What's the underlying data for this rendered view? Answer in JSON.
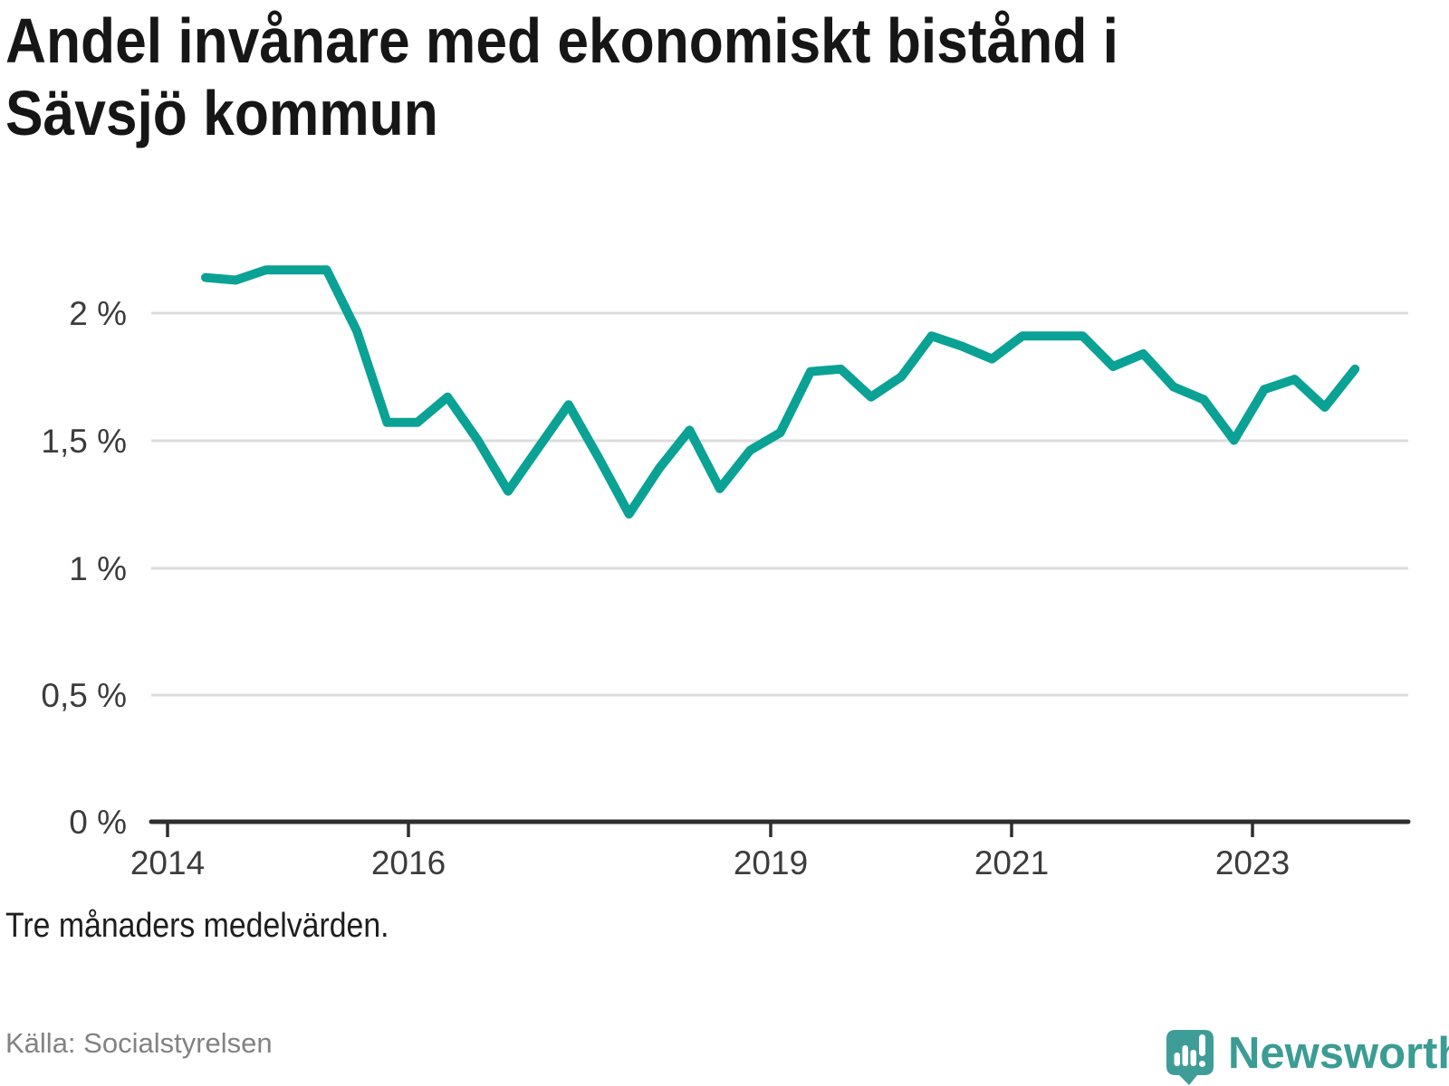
{
  "title": "Andel invånare med ekonomiskt bistånd i Sävsjö kommun",
  "footnote": "Tre månaders medelvärden.",
  "source": "Källa: Socialstyrelsen",
  "branding": {
    "logo_text": "Newsworthy",
    "brand_color": "#3b9c94"
  },
  "chart_data": {
    "type": "line",
    "title": "Andel invånare med ekonomiskt bistånd i Sävsjö kommun",
    "subtitle_note": "Tre månaders medelvärden.",
    "unit": "%",
    "line_color": "#0aa295",
    "grid": "horizontal",
    "legend": "none",
    "ylim": [
      0,
      2.35
    ],
    "yticks": [
      2,
      1.5,
      1,
      0.5,
      0
    ],
    "ytick_labels": [
      "2 %",
      "1,5 %",
      "1 %",
      "0,5 %",
      "0 %"
    ],
    "xtick_years": [
      2014,
      2016,
      2019,
      2021,
      2023
    ],
    "xtick_labels": [
      "2014",
      "2016",
      "2019",
      "2021",
      "2023"
    ],
    "x_range_years": [
      2014.33,
      2023.83
    ],
    "periods": [
      "2014-Q2",
      "2014-Q3",
      "2014-Q4",
      "2015-Q1",
      "2015-Q2",
      "2015-Q3",
      "2015-Q4",
      "2016-Q1",
      "2016-Q2",
      "2016-Q3",
      "2016-Q4",
      "2017-Q1",
      "2017-Q2",
      "2017-Q3",
      "2017-Q4",
      "2018-Q1",
      "2018-Q2",
      "2018-Q3",
      "2018-Q4",
      "2019-Q1",
      "2019-Q2",
      "2019-Q3",
      "2019-Q4",
      "2020-Q1",
      "2020-Q2",
      "2020-Q3",
      "2020-Q4",
      "2021-Q1",
      "2021-Q2",
      "2021-Q3",
      "2021-Q4",
      "2022-Q1",
      "2022-Q2",
      "2022-Q3",
      "2022-Q4",
      "2023-Q1",
      "2023-Q2",
      "2023-Q3",
      "2023-Q4"
    ],
    "values": [
      2.14,
      2.13,
      2.17,
      2.17,
      2.17,
      1.93,
      1.57,
      1.57,
      1.67,
      1.5,
      1.3,
      1.47,
      1.64,
      1.43,
      1.21,
      1.39,
      1.54,
      1.31,
      1.46,
      1.53,
      1.77,
      1.78,
      1.67,
      1.75,
      1.91,
      1.87,
      1.82,
      1.91,
      1.91,
      1.91,
      1.79,
      1.84,
      1.71,
      1.66,
      1.5,
      1.7,
      1.74,
      1.63,
      1.78
    ]
  }
}
